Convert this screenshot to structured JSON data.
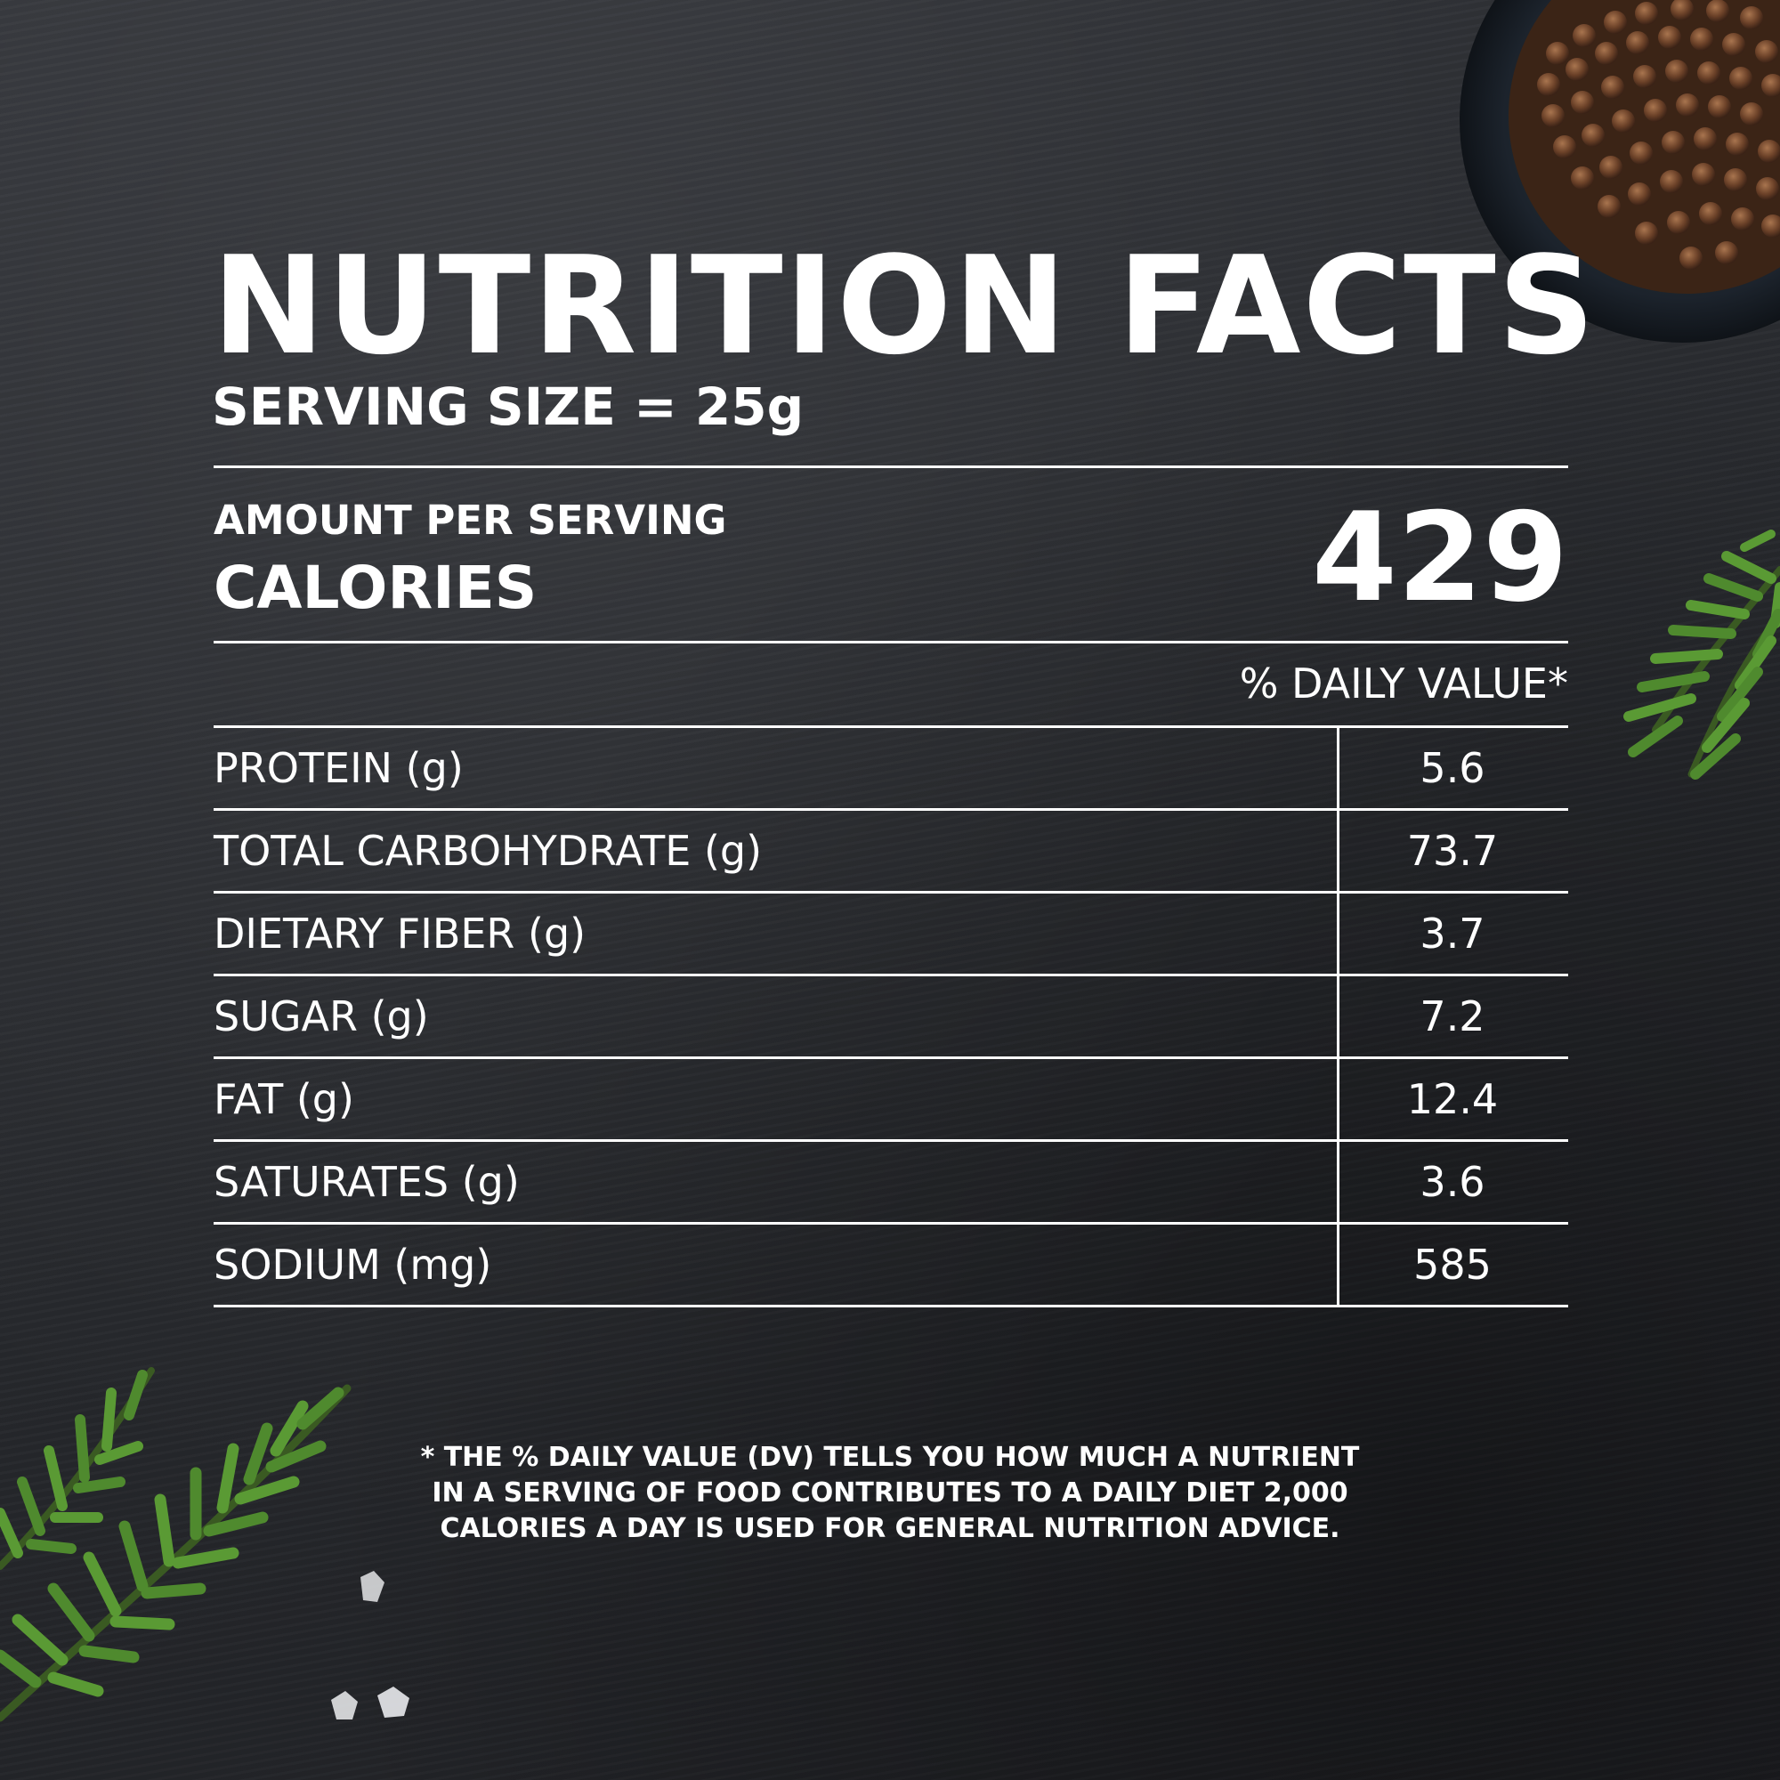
{
  "label": {
    "title": "NUTRITION FACTS",
    "serving_size": "SERVING SIZE = 25g",
    "amount_per_serving": "AMOUNT PER SERVING",
    "calories_label": "CALORIES",
    "calories_value": "429",
    "daily_value_header": "% DAILY VALUE*",
    "nutrients": [
      {
        "name": "PROTEIN (g)",
        "value": "5.6"
      },
      {
        "name": "TOTAL CARBOHYDRATE (g)",
        "value": "73.7"
      },
      {
        "name": "DIETARY FIBER (g)",
        "value": "3.7"
      },
      {
        "name": "SUGAR (g)",
        "value": "7.2"
      },
      {
        "name": "FAT (g)",
        "value": "12.4"
      },
      {
        "name": "SATURATES (g)",
        "value": "3.6"
      },
      {
        "name": "SODIUM (mg)",
        "value": "585"
      }
    ],
    "footnote": [
      "* THE % DAILY VALUE (DV) TELLS YOU HOW MUCH A NUTRIENT",
      "IN A SERVING OF FOOD CONTRIBUTES TO A DAILY DIET 2,000",
      "CALORIES A DAY IS USED FOR GENERAL NUTRITION ADVICE."
    ]
  },
  "colors": {
    "background": "#2a2c30",
    "text": "#ffffff",
    "rosemary": "#4f8a2e",
    "peppercorn": "#6b4128"
  },
  "decorations": {
    "top_right": "peppercorn-bowl",
    "right_edge": "rosemary-sprig",
    "bottom_left": "rosemary-sprig",
    "bottom_left_small": "salt-crystals"
  }
}
